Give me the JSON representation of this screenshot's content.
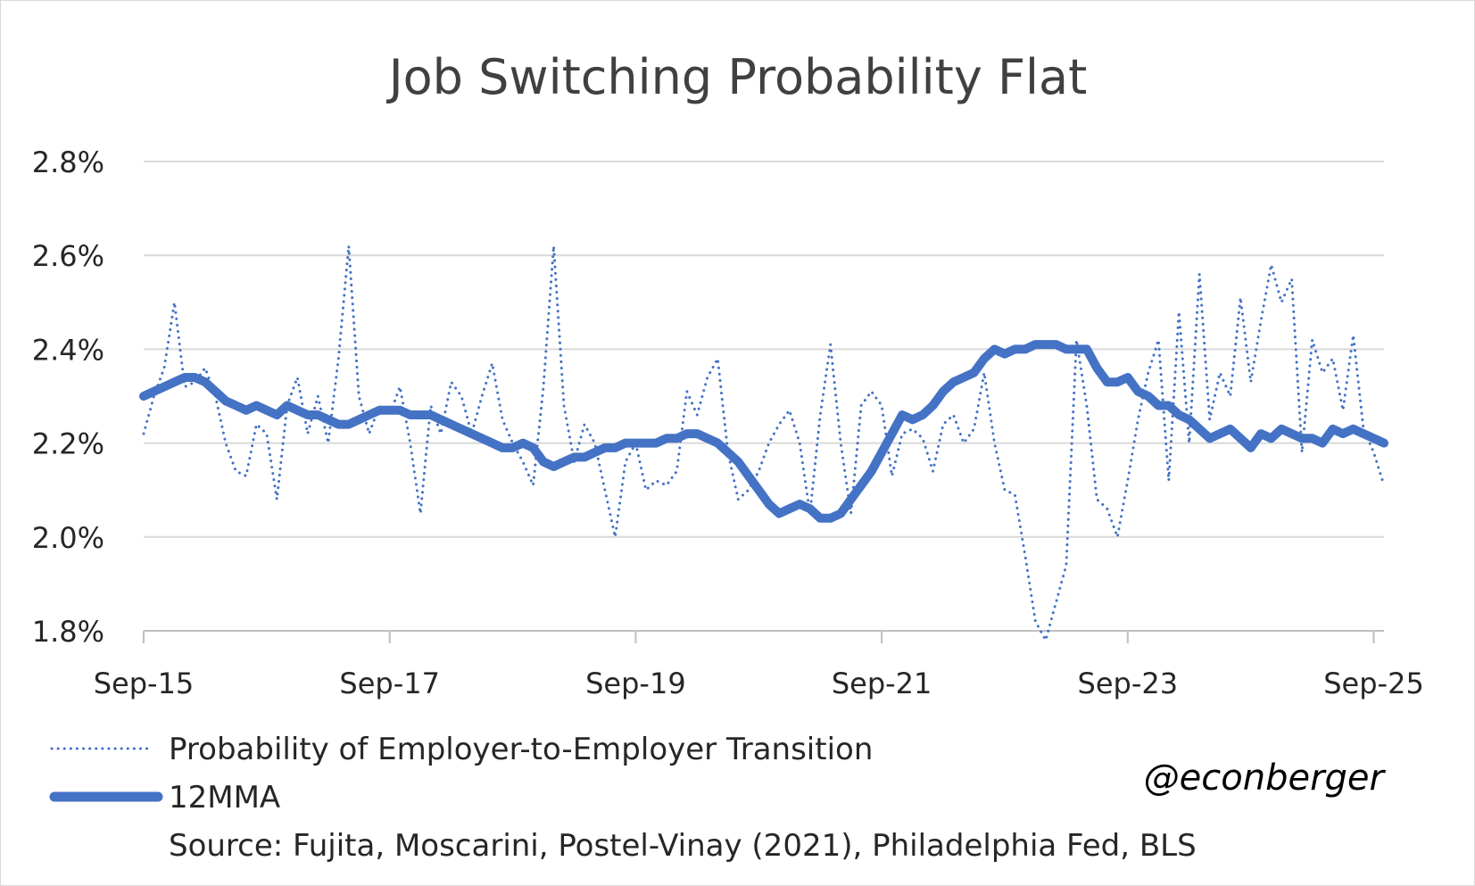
{
  "chart_data": {
    "type": "line",
    "title": "Job Switching Probability Flat",
    "xlabel": "",
    "ylabel": "",
    "y_ticks": [
      "1.8%",
      "2.0%",
      "2.2%",
      "2.4%",
      "2.6%",
      "2.8%"
    ],
    "ylim": [
      1.8,
      2.8
    ],
    "x_ticks": [
      "Sep-15",
      "Sep-17",
      "Sep-19",
      "Sep-21",
      "Sep-23",
      "Sep-25"
    ],
    "x_tick_months": [
      0,
      24,
      48,
      72,
      96,
      120
    ],
    "x_range_months": [
      0,
      121
    ],
    "grid": "horizontal",
    "series": [
      {
        "name": "Probability of Employer-to-Employer Transition",
        "style": "dotted",
        "color": "#4472c4",
        "points": [
          [
            0,
            2.22
          ],
          [
            1,
            2.3
          ],
          [
            2,
            2.36
          ],
          [
            3,
            2.5
          ],
          [
            4,
            2.32
          ],
          [
            5,
            2.33
          ],
          [
            6,
            2.36
          ],
          [
            7,
            2.3
          ],
          [
            8,
            2.2
          ],
          [
            9,
            2.14
          ],
          [
            10,
            2.13
          ],
          [
            11,
            2.24
          ],
          [
            12,
            2.22
          ],
          [
            13,
            2.08
          ],
          [
            14,
            2.28
          ],
          [
            15,
            2.34
          ],
          [
            16,
            2.22
          ],
          [
            17,
            2.3
          ],
          [
            18,
            2.2
          ],
          [
            19,
            2.38
          ],
          [
            20,
            2.62
          ],
          [
            21,
            2.3
          ],
          [
            22,
            2.22
          ],
          [
            23,
            2.28
          ],
          [
            24,
            2.26
          ],
          [
            25,
            2.32
          ],
          [
            26,
            2.2
          ],
          [
            27,
            2.05
          ],
          [
            28,
            2.28
          ],
          [
            29,
            2.22
          ],
          [
            30,
            2.33
          ],
          [
            31,
            2.3
          ],
          [
            32,
            2.22
          ],
          [
            33,
            2.3
          ],
          [
            34,
            2.37
          ],
          [
            35,
            2.25
          ],
          [
            36,
            2.2
          ],
          [
            37,
            2.16
          ],
          [
            38,
            2.11
          ],
          [
            39,
            2.32
          ],
          [
            40,
            2.62
          ],
          [
            41,
            2.28
          ],
          [
            42,
            2.16
          ],
          [
            43,
            2.24
          ],
          [
            44,
            2.2
          ],
          [
            45,
            2.1
          ],
          [
            46,
            2.0
          ],
          [
            47,
            2.16
          ],
          [
            48,
            2.2
          ],
          [
            49,
            2.1
          ],
          [
            50,
            2.12
          ],
          [
            51,
            2.11
          ],
          [
            52,
            2.14
          ],
          [
            53,
            2.31
          ],
          [
            54,
            2.26
          ],
          [
            55,
            2.34
          ],
          [
            56,
            2.38
          ],
          [
            57,
            2.18
          ],
          [
            58,
            2.08
          ],
          [
            59,
            2.1
          ],
          [
            60,
            2.14
          ],
          [
            61,
            2.2
          ],
          [
            62,
            2.24
          ],
          [
            63,
            2.27
          ],
          [
            64,
            2.2
          ],
          [
            65,
            2.05
          ],
          [
            66,
            2.26
          ],
          [
            67,
            2.41
          ],
          [
            68,
            2.2
          ],
          [
            69,
            2.05
          ],
          [
            70,
            2.28
          ],
          [
            71,
            2.31
          ],
          [
            72,
            2.28
          ],
          [
            73,
            2.13
          ],
          [
            74,
            2.22
          ],
          [
            75,
            2.23
          ],
          [
            76,
            2.21
          ],
          [
            77,
            2.14
          ],
          [
            78,
            2.24
          ],
          [
            79,
            2.26
          ],
          [
            80,
            2.2
          ],
          [
            81,
            2.23
          ],
          [
            82,
            2.35
          ],
          [
            83,
            2.2
          ],
          [
            84,
            2.1
          ],
          [
            85,
            2.09
          ],
          [
            86,
            1.96
          ],
          [
            87,
            1.82
          ],
          [
            88,
            1.78
          ],
          [
            89,
            1.86
          ],
          [
            90,
            1.94
          ],
          [
            91,
            2.42
          ],
          [
            92,
            2.28
          ],
          [
            93,
            2.08
          ],
          [
            94,
            2.06
          ],
          [
            95,
            2.0
          ],
          [
            96,
            2.12
          ],
          [
            97,
            2.25
          ],
          [
            98,
            2.35
          ],
          [
            99,
            2.42
          ],
          [
            100,
            2.12
          ],
          [
            101,
            2.48
          ],
          [
            102,
            2.2
          ],
          [
            103,
            2.56
          ],
          [
            104,
            2.25
          ],
          [
            105,
            2.35
          ],
          [
            106,
            2.3
          ],
          [
            107,
            2.51
          ],
          [
            108,
            2.33
          ],
          [
            109,
            2.46
          ],
          [
            110,
            2.58
          ],
          [
            111,
            2.5
          ],
          [
            112,
            2.55
          ],
          [
            113,
            2.18
          ],
          [
            114,
            2.42
          ],
          [
            115,
            2.35
          ],
          [
            116,
            2.38
          ],
          [
            117,
            2.27
          ],
          [
            118,
            2.43
          ],
          [
            119,
            2.23
          ],
          [
            120,
            2.18
          ],
          [
            121,
            2.11
          ]
        ]
      },
      {
        "name": "12MMA",
        "style": "solid",
        "color": "#4472c4",
        "points": [
          [
            0,
            2.3
          ],
          [
            1,
            2.31
          ],
          [
            2,
            2.32
          ],
          [
            3,
            2.33
          ],
          [
            4,
            2.34
          ],
          [
            5,
            2.34
          ],
          [
            6,
            2.33
          ],
          [
            7,
            2.31
          ],
          [
            8,
            2.29
          ],
          [
            9,
            2.28
          ],
          [
            10,
            2.27
          ],
          [
            11,
            2.28
          ],
          [
            12,
            2.27
          ],
          [
            13,
            2.26
          ],
          [
            14,
            2.28
          ],
          [
            15,
            2.27
          ],
          [
            16,
            2.26
          ],
          [
            17,
            2.26
          ],
          [
            18,
            2.25
          ],
          [
            19,
            2.24
          ],
          [
            20,
            2.24
          ],
          [
            21,
            2.25
          ],
          [
            22,
            2.26
          ],
          [
            23,
            2.27
          ],
          [
            24,
            2.27
          ],
          [
            25,
            2.27
          ],
          [
            26,
            2.26
          ],
          [
            27,
            2.26
          ],
          [
            28,
            2.26
          ],
          [
            29,
            2.25
          ],
          [
            30,
            2.24
          ],
          [
            31,
            2.23
          ],
          [
            32,
            2.22
          ],
          [
            33,
            2.21
          ],
          [
            34,
            2.2
          ],
          [
            35,
            2.19
          ],
          [
            36,
            2.19
          ],
          [
            37,
            2.2
          ],
          [
            38,
            2.19
          ],
          [
            39,
            2.16
          ],
          [
            40,
            2.15
          ],
          [
            41,
            2.16
          ],
          [
            42,
            2.17
          ],
          [
            43,
            2.17
          ],
          [
            44,
            2.18
          ],
          [
            45,
            2.19
          ],
          [
            46,
            2.19
          ],
          [
            47,
            2.2
          ],
          [
            48,
            2.2
          ],
          [
            49,
            2.2
          ],
          [
            50,
            2.2
          ],
          [
            51,
            2.21
          ],
          [
            52,
            2.21
          ],
          [
            53,
            2.22
          ],
          [
            54,
            2.22
          ],
          [
            55,
            2.21
          ],
          [
            56,
            2.2
          ],
          [
            57,
            2.18
          ],
          [
            58,
            2.16
          ],
          [
            59,
            2.13
          ],
          [
            60,
            2.1
          ],
          [
            61,
            2.07
          ],
          [
            62,
            2.05
          ],
          [
            63,
            2.06
          ],
          [
            64,
            2.07
          ],
          [
            65,
            2.06
          ],
          [
            66,
            2.04
          ],
          [
            67,
            2.04
          ],
          [
            68,
            2.05
          ],
          [
            69,
            2.08
          ],
          [
            70,
            2.11
          ],
          [
            71,
            2.14
          ],
          [
            72,
            2.18
          ],
          [
            73,
            2.22
          ],
          [
            74,
            2.26
          ],
          [
            75,
            2.25
          ],
          [
            76,
            2.26
          ],
          [
            77,
            2.28
          ],
          [
            78,
            2.31
          ],
          [
            79,
            2.33
          ],
          [
            80,
            2.34
          ],
          [
            81,
            2.35
          ],
          [
            82,
            2.38
          ],
          [
            83,
            2.4
          ],
          [
            84,
            2.39
          ],
          [
            85,
            2.4
          ],
          [
            86,
            2.4
          ],
          [
            87,
            2.41
          ],
          [
            88,
            2.41
          ],
          [
            89,
            2.41
          ],
          [
            90,
            2.4
          ],
          [
            91,
            2.4
          ],
          [
            92,
            2.4
          ],
          [
            93,
            2.36
          ],
          [
            94,
            2.33
          ],
          [
            95,
            2.33
          ],
          [
            96,
            2.34
          ],
          [
            97,
            2.31
          ],
          [
            98,
            2.3
          ],
          [
            99,
            2.28
          ],
          [
            100,
            2.28
          ],
          [
            101,
            2.26
          ],
          [
            102,
            2.25
          ],
          [
            103,
            2.23
          ],
          [
            104,
            2.21
          ],
          [
            105,
            2.22
          ],
          [
            106,
            2.23
          ],
          [
            107,
            2.21
          ],
          [
            108,
            2.19
          ],
          [
            109,
            2.22
          ],
          [
            110,
            2.21
          ],
          [
            111,
            2.23
          ],
          [
            112,
            2.22
          ],
          [
            113,
            2.21
          ],
          [
            114,
            2.21
          ],
          [
            115,
            2.2
          ],
          [
            116,
            2.23
          ],
          [
            117,
            2.22
          ],
          [
            118,
            2.23
          ],
          [
            119,
            2.22
          ],
          [
            120,
            2.21
          ],
          [
            121,
            2.2
          ]
        ]
      }
    ],
    "legend": [
      {
        "label": "Probability of Employer-to-Employer Transition",
        "style": "dotted"
      },
      {
        "label": "12MMA",
        "style": "solid"
      }
    ],
    "source": "Source: Fujita, Moscarini, Postel-Vinay (2021), Philadelphia Fed, BLS",
    "credit": "@econberger",
    "colors": {
      "series": "#4472c4",
      "grid": "#d9d9d9",
      "axis": "#bfbfbf",
      "title": "#404040",
      "text": "#262626"
    }
  }
}
